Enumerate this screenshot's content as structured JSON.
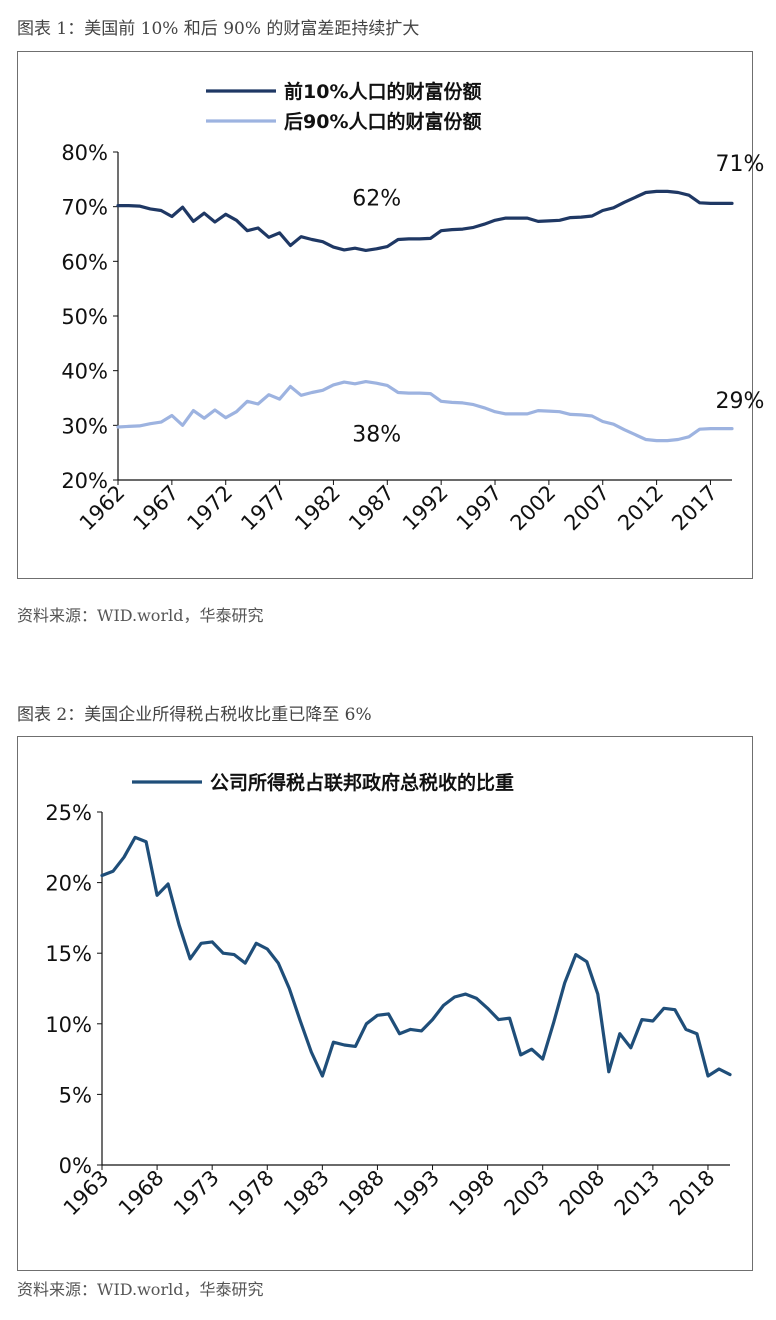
{
  "figure1": {
    "caption": "图表 1：美国前 10% 和后 90% 的财富差距持续扩大",
    "source": "资料来源：WID.world，华泰研究",
    "chart_data": {
      "type": "line",
      "xlabel": "",
      "ylabel": "",
      "ylim": [
        20,
        80
      ],
      "y_ticks": [
        "80%",
        "70%",
        "60%",
        "50%",
        "40%",
        "30%",
        "20%"
      ],
      "y_tick_values": [
        80,
        70,
        60,
        50,
        40,
        30,
        20
      ],
      "x_ticks": [
        "1962",
        "1967",
        "1972",
        "1977",
        "1982",
        "1987",
        "1992",
        "1997",
        "2002",
        "2007",
        "2012",
        "2017"
      ],
      "x_tick_values": [
        1962,
        1967,
        1972,
        1977,
        1982,
        1987,
        1992,
        1997,
        2002,
        2007,
        2012,
        2017
      ],
      "xlim": [
        1962,
        2019
      ],
      "grid": false,
      "legend_position": "top-center",
      "series": [
        {
          "name": "前10%人口的财富份额",
          "color": "#1f3864",
          "x": [
            1962,
            1963,
            1964,
            1965,
            1966,
            1967,
            1968,
            1969,
            1970,
            1971,
            1972,
            1973,
            1974,
            1975,
            1976,
            1977,
            1978,
            1979,
            1980,
            1981,
            1982,
            1983,
            1984,
            1985,
            1986,
            1987,
            1988,
            1989,
            1990,
            1991,
            1992,
            1993,
            1994,
            1995,
            1996,
            1997,
            1998,
            1999,
            2000,
            2001,
            2002,
            2003,
            2004,
            2005,
            2006,
            2007,
            2008,
            2009,
            2010,
            2011,
            2012,
            2013,
            2014,
            2015,
            2016,
            2017,
            2018,
            2019
          ],
          "values": [
            70.2,
            70.2,
            70.1,
            69.6,
            69.3,
            68.2,
            69.9,
            67.3,
            68.8,
            67.2,
            68.6,
            67.5,
            65.6,
            66.1,
            64.4,
            65.2,
            62.9,
            64.5,
            64.0,
            63.6,
            62.6,
            62.1,
            62.4,
            62.0,
            62.3,
            62.7,
            64.0,
            64.1,
            64.1,
            64.2,
            65.6,
            65.8,
            65.9,
            66.2,
            66.8,
            67.5,
            67.9,
            67.9,
            67.9,
            67.3,
            67.4,
            67.5,
            68.0,
            68.1,
            68.3,
            69.3,
            69.8,
            70.8,
            71.7,
            72.6,
            72.8,
            72.8,
            72.6,
            72.1,
            70.7,
            70.6,
            70.6,
            70.6
          ]
        },
        {
          "name": "后90%人口的财富份额",
          "color": "#9db3e0",
          "x": [
            1962,
            1963,
            1964,
            1965,
            1966,
            1967,
            1968,
            1969,
            1970,
            1971,
            1972,
            1973,
            1974,
            1975,
            1976,
            1977,
            1978,
            1979,
            1980,
            1981,
            1982,
            1983,
            1984,
            1985,
            1986,
            1987,
            1988,
            1989,
            1990,
            1991,
            1992,
            1993,
            1994,
            1995,
            1996,
            1997,
            1998,
            1999,
            2000,
            2001,
            2002,
            2003,
            2004,
            2005,
            2006,
            2007,
            2008,
            2009,
            2010,
            2011,
            2012,
            2013,
            2014,
            2015,
            2016,
            2017,
            2018,
            2019
          ],
          "values": [
            29.7,
            29.8,
            29.9,
            30.3,
            30.6,
            31.8,
            30.0,
            32.7,
            31.3,
            32.8,
            31.4,
            32.5,
            34.4,
            33.9,
            35.6,
            34.8,
            37.1,
            35.5,
            36.0,
            36.4,
            37.4,
            37.9,
            37.6,
            38.0,
            37.7,
            37.3,
            36.0,
            35.9,
            35.9,
            35.8,
            34.4,
            34.2,
            34.1,
            33.8,
            33.2,
            32.5,
            32.1,
            32.1,
            32.1,
            32.7,
            32.6,
            32.5,
            32.0,
            31.9,
            31.7,
            30.7,
            30.2,
            29.2,
            28.3,
            27.4,
            27.2,
            27.2,
            27.4,
            27.9,
            29.3,
            29.4,
            29.4,
            29.4
          ]
        }
      ],
      "annotations": [
        "62%",
        "38%",
        "71%",
        "29%"
      ]
    }
  },
  "figure2": {
    "caption": "图表 2：美国企业所得税占税收比重已降至 6%",
    "source": "资料来源：WID.world，华泰研究",
    "chart_data": {
      "type": "line",
      "xlabel": "",
      "ylabel": "",
      "ylim": [
        0,
        25
      ],
      "y_ticks": [
        "25%",
        "20%",
        "15%",
        "10%",
        "5%",
        "0%"
      ],
      "y_tick_values": [
        25,
        20,
        15,
        10,
        5,
        0
      ],
      "x_ticks": [
        "1963",
        "1968",
        "1973",
        "1978",
        "1983",
        "1988",
        "1993",
        "1998",
        "2003",
        "2008",
        "2013",
        "2018"
      ],
      "x_tick_values": [
        1963,
        1968,
        1973,
        1978,
        1983,
        1988,
        1993,
        1998,
        2003,
        2008,
        2013,
        2018
      ],
      "xlim": [
        1963,
        2020
      ],
      "grid": false,
      "legend_position": "top-center",
      "series": [
        {
          "name": "公司所得税占联邦政府总税收的比重",
          "color": "#1f4e79",
          "x": [
            1963,
            1964,
            1965,
            1966,
            1967,
            1968,
            1969,
            1970,
            1971,
            1972,
            1973,
            1974,
            1975,
            1976,
            1977,
            1978,
            1979,
            1980,
            1981,
            1982,
            1983,
            1984,
            1985,
            1986,
            1987,
            1988,
            1989,
            1990,
            1991,
            1992,
            1993,
            1994,
            1995,
            1996,
            1997,
            1998,
            1999,
            2000,
            2001,
            2002,
            2003,
            2004,
            2005,
            2006,
            2007,
            2008,
            2009,
            2010,
            2011,
            2012,
            2013,
            2014,
            2015,
            2016,
            2017,
            2018,
            2019,
            2020
          ],
          "values": [
            20.5,
            20.8,
            21.8,
            23.2,
            22.9,
            19.1,
            19.9,
            17.0,
            14.6,
            15.7,
            15.8,
            15.0,
            14.9,
            14.3,
            15.7,
            15.3,
            14.3,
            12.5,
            10.2,
            8.0,
            6.3,
            8.7,
            8.5,
            8.4,
            10.0,
            10.6,
            10.7,
            9.3,
            9.6,
            9.5,
            10.3,
            11.3,
            11.9,
            12.1,
            11.8,
            11.1,
            10.3,
            10.4,
            7.8,
            8.2,
            7.5,
            10.1,
            12.9,
            14.9,
            14.4,
            12.1,
            6.6,
            9.3,
            8.3,
            10.3,
            10.2,
            11.1,
            11.0,
            9.6,
            9.3,
            6.3,
            6.8,
            6.4
          ]
        }
      ]
    }
  }
}
